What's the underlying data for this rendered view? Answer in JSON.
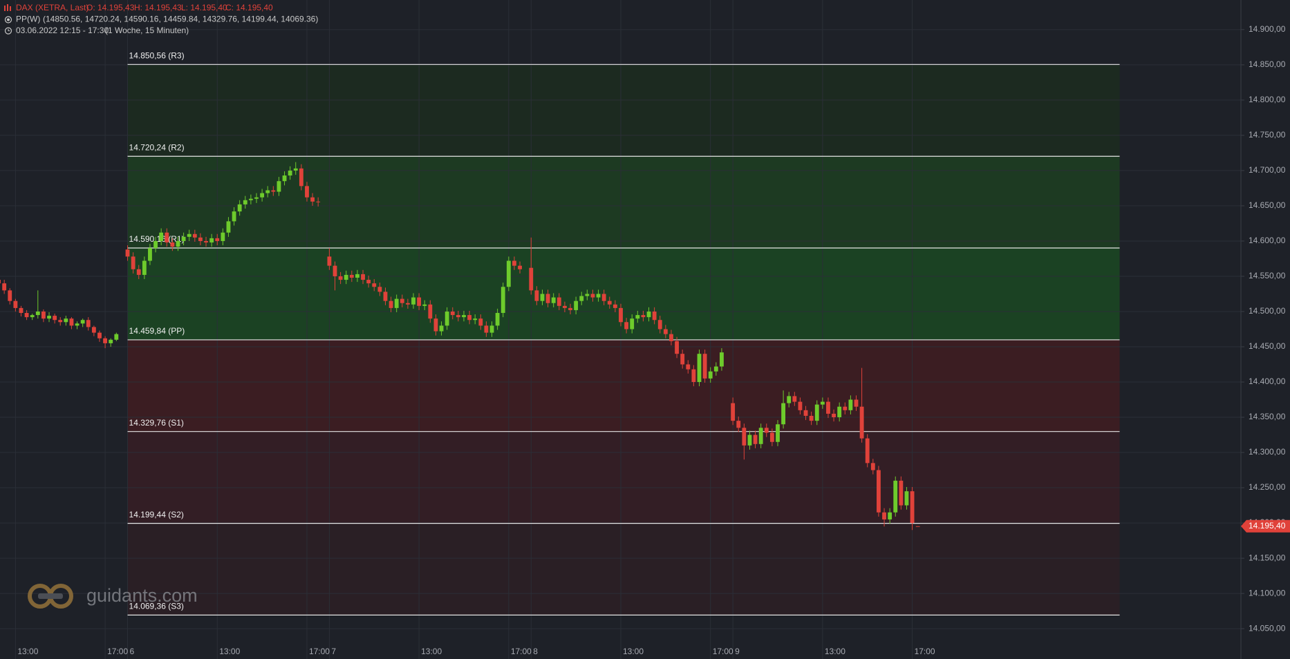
{
  "header": {
    "symbol": "DAX (XETRA, Last)",
    "open": "O: 14.195,43",
    "high": "H: 14.195,43",
    "low": "L: 14.195,40",
    "close": "C: 14.195,40",
    "indicator": "PP(W)",
    "indicator_values": "(14850.56, 14720.24, 14590.16, 14459.84, 14329.76, 14199.44, 14069.36)",
    "range": "03.06.2022 12:15 - 17:30",
    "interval": "(1 Woche, 15 Minuten)"
  },
  "watermark": "guidants.com",
  "chart_data": {
    "type": "candlestick",
    "up_color": "#6ecb2c",
    "down_color": "#e0423a",
    "xlim": [
      -5.69,
      49.66
    ],
    "ylim": [
      14007,
      14942
    ],
    "grid": true,
    "xticks": [
      {
        "value": -5,
        "label": "13:00"
      },
      {
        "value": -1,
        "label": "17:00"
      },
      {
        "value": 0,
        "label": "6"
      },
      {
        "value": 4,
        "label": "13:00"
      },
      {
        "value": 8,
        "label": "17:00"
      },
      {
        "value": 9,
        "label": "7"
      },
      {
        "value": 13,
        "label": "13:00"
      },
      {
        "value": 17,
        "label": "17:00"
      },
      {
        "value": 18,
        "label": "8"
      },
      {
        "value": 22,
        "label": "13:00"
      },
      {
        "value": 26,
        "label": "17:00"
      },
      {
        "value": 27,
        "label": "9"
      },
      {
        "value": 31,
        "label": "13:00"
      },
      {
        "value": 35,
        "label": "17:00"
      }
    ],
    "yticks": [
      {
        "value": 14050,
        "label": "14.050,00"
      },
      {
        "value": 14100,
        "label": "14.100,00"
      },
      {
        "value": 14150,
        "label": "14.150,00"
      },
      {
        "value": 14200,
        "label": "14.200,00"
      },
      {
        "value": 14250,
        "label": "14.250,00"
      },
      {
        "value": 14300,
        "label": "14.300,00"
      },
      {
        "value": 14350,
        "label": "14.350,00"
      },
      {
        "value": 14400,
        "label": "14.400,00"
      },
      {
        "value": 14450,
        "label": "14.450,00"
      },
      {
        "value": 14500,
        "label": "14.500,00"
      },
      {
        "value": 14550,
        "label": "14.550,00"
      },
      {
        "value": 14600,
        "label": "14.600,00"
      },
      {
        "value": 14650,
        "label": "14.650,00"
      },
      {
        "value": 14700,
        "label": "14.700,00"
      },
      {
        "value": 14750,
        "label": "14.750,00"
      },
      {
        "value": 14800,
        "label": "14.800,00"
      },
      {
        "value": 14850,
        "label": "14.850,00"
      },
      {
        "value": 14900,
        "label": "14.900,00"
      }
    ],
    "last_price": {
      "value": 14195.4,
      "label": "14.195,40"
    },
    "level_range": [
      0,
      44.25
    ],
    "levels": [
      {
        "value": 14850.56,
        "label": "14.850,56 (R3)"
      },
      {
        "value": 14720.24,
        "label": "14.720,24 (R2)"
      },
      {
        "value": 14590.16,
        "label": "14.590,16 (R1)"
      },
      {
        "value": 14459.84,
        "label": "14.459,84 (PP)"
      },
      {
        "value": 14329.76,
        "label": "14.329,76 (S1)"
      },
      {
        "value": 14199.44,
        "label": "14.199,44 (S2)"
      },
      {
        "value": 14069.36,
        "label": "14.069,36 (S3)"
      }
    ],
    "zone_colors": [
      "#1c2a20",
      "#1d3a22",
      "#1b4223",
      "#3b1d22",
      "#331e25",
      "#2a1f25"
    ],
    "x": [
      -5.75,
      -5.5,
      -5.25,
      -5,
      -4.75,
      -4.5,
      -4.25,
      -4,
      -3.75,
      -3.5,
      -3.25,
      -3,
      -2.75,
      -2.5,
      -2.25,
      -2,
      -1.75,
      -1.5,
      -1.25,
      -1,
      -0.75,
      -0.5,
      0,
      0.25,
      0.5,
      0.75,
      1,
      1.25,
      1.5,
      1.75,
      2,
      2.25,
      2.5,
      2.75,
      3,
      3.25,
      3.5,
      3.75,
      4,
      4.25,
      4.5,
      4.75,
      5,
      5.25,
      5.5,
      5.75,
      6,
      6.25,
      6.5,
      6.75,
      7,
      7.25,
      7.5,
      7.75,
      8,
      8.25,
      8.5,
      9,
      9.25,
      9.5,
      9.75,
      10,
      10.25,
      10.5,
      10.75,
      11,
      11.25,
      11.5,
      11.75,
      12,
      12.25,
      12.5,
      12.75,
      13,
      13.25,
      13.5,
      13.75,
      14,
      14.25,
      14.5,
      14.75,
      15,
      15.25,
      15.5,
      15.75,
      16,
      16.25,
      16.5,
      16.75,
      17,
      17.25,
      17.5,
      18,
      18.25,
      18.5,
      18.75,
      19,
      19.25,
      19.5,
      19.75,
      20,
      20.25,
      20.5,
      20.75,
      21,
      21.25,
      21.5,
      21.75,
      22,
      22.25,
      22.5,
      22.75,
      23,
      23.25,
      23.5,
      23.75,
      24,
      24.25,
      24.5,
      24.75,
      25,
      25.25,
      25.5,
      25.75,
      26,
      26.25,
      26.5,
      27,
      27.25,
      27.5,
      27.75,
      28,
      28.25,
      28.5,
      28.75,
      29,
      29.25,
      29.5,
      29.75,
      30,
      30.25,
      30.5,
      30.75,
      31,
      31.25,
      31.5,
      31.75,
      32,
      32.25,
      32.5,
      32.75,
      33,
      33.25,
      33.5,
      33.75,
      34,
      34.25,
      34.5,
      34.75,
      35,
      35.25
    ],
    "open": [
      14545,
      14540,
      14530,
      14515,
      14505,
      14498,
      14492,
      14495,
      14500,
      14490,
      14494,
      14488,
      14485,
      14490,
      14480,
      14483,
      14488,
      14478,
      14470,
      14462,
      14455,
      14460,
      14588,
      14578,
      14560,
      14552,
      14572,
      14590,
      14600,
      14612,
      14598,
      14592,
      14600,
      14606,
      14610,
      14605,
      14600,
      14598,
      14604,
      14600,
      14612,
      14628,
      14642,
      14652,
      14658,
      14660,
      14662,
      14668,
      14672,
      14670,
      14685,
      14693,
      14700,
      14703,
      14678,
      14662,
      14656,
      14578,
      14565,
      14550,
      14545,
      14552,
      14548,
      14553,
      14545,
      14540,
      14535,
      14528,
      14515,
      14505,
      14518,
      14512,
      14510,
      14520,
      14508,
      14510,
      14490,
      14472,
      14480,
      14500,
      14495,
      14492,
      14495,
      14488,
      14490,
      14480,
      14470,
      14480,
      14498,
      14535,
      14572,
      14565,
      14562,
      14530,
      14515,
      14525,
      14512,
      14520,
      14508,
      14505,
      14502,
      14515,
      14522,
      14525,
      14520,
      14525,
      14515,
      14510,
      14505,
      14485,
      14475,
      14490,
      14495,
      14492,
      14500,
      14488,
      14475,
      14468,
      14458,
      14440,
      14425,
      14418,
      14400,
      14440,
      14405,
      14415,
      14422,
      14370,
      14345,
      14335,
      14310,
      14325,
      14312,
      14335,
      14328,
      14315,
      14340,
      14370,
      14380,
      14372,
      14360,
      14352,
      14345,
      14368,
      14372,
      14355,
      14350,
      14365,
      14360,
      14375,
      14365,
      14320,
      14285,
      14275,
      14215,
      14205,
      14215,
      14260,
      14225,
      14245,
      14195.43
    ],
    "high": [
      14552,
      14545,
      14533,
      14518,
      14508,
      14502,
      14497,
      14530,
      14503,
      14499,
      14497,
      14492,
      14494,
      14492,
      14486,
      14490,
      14492,
      14480,
      14473,
      14465,
      14462,
      14470,
      14594,
      14584,
      14566,
      14578,
      14596,
      14606,
      14618,
      14618,
      14604,
      14606,
      14612,
      14616,
      14616,
      14611,
      14606,
      14610,
      14610,
      14618,
      14634,
      14648,
      14658,
      14664,
      14666,
      14668,
      14674,
      14678,
      14678,
      14691,
      14699,
      14706,
      14712,
      14709,
      14684,
      14668,
      14662,
      14590,
      14571,
      14556,
      14558,
      14558,
      14559,
      14559,
      14551,
      14546,
      14541,
      14534,
      14521,
      14524,
      14524,
      14518,
      14526,
      14526,
      14516,
      14516,
      14496,
      14486,
      14506,
      14506,
      14501,
      14501,
      14501,
      14496,
      14496,
      14486,
      14486,
      14504,
      14541,
      14578,
      14578,
      14571,
      14605,
      14536,
      14531,
      14531,
      14526,
      14526,
      14514,
      14511,
      14521,
      14528,
      14531,
      14531,
      14531,
      14531,
      14521,
      14516,
      14511,
      14491,
      14496,
      14501,
      14501,
      14506,
      14506,
      14494,
      14481,
      14474,
      14464,
      14446,
      14431,
      14424,
      14446,
      14446,
      14421,
      14428,
      14448,
      14378,
      14351,
      14341,
      14331,
      14331,
      14341,
      14341,
      14334,
      14346,
      14388,
      14386,
      14386,
      14378,
      14366,
      14358,
      14374,
      14378,
      14378,
      14361,
      14371,
      14371,
      14381,
      14381,
      14420,
      14326,
      14291,
      14281,
      14221,
      14221,
      14266,
      14266,
      14251,
      14251,
      14195.43
    ],
    "low": [
      14535,
      14525,
      14510,
      14500,
      14493,
      14488,
      14488,
      14490,
      14485,
      14485,
      14483,
      14480,
      14480,
      14475,
      14475,
      14478,
      14473,
      14465,
      14457,
      14448,
      14450,
      14458,
      14572,
      14554,
      14546,
      14546,
      14566,
      14584,
      14594,
      14592,
      14586,
      14586,
      14594,
      14600,
      14599,
      14594,
      14592,
      14592,
      14594,
      14594,
      14606,
      14622,
      14636,
      14646,
      14652,
      14654,
      14656,
      14662,
      14664,
      14664,
      14679,
      14687,
      14694,
      14672,
      14656,
      14650,
      14649,
      14559,
      14530,
      14539,
      14539,
      14542,
      14542,
      14539,
      14534,
      14529,
      14522,
      14509,
      14499,
      14499,
      14506,
      14504,
      14504,
      14502,
      14502,
      14484,
      14466,
      14466,
      14474,
      14489,
      14486,
      14486,
      14482,
      14482,
      14474,
      14464,
      14464,
      14474,
      14492,
      14529,
      14559,
      14554,
      14524,
      14509,
      14509,
      14506,
      14506,
      14502,
      14499,
      14496,
      14496,
      14509,
      14516,
      14514,
      14514,
      14509,
      14504,
      14499,
      14479,
      14469,
      14469,
      14484,
      14486,
      14486,
      14482,
      14469,
      14462,
      14452,
      14434,
      14419,
      14412,
      14394,
      14394,
      14399,
      14399,
      14409,
      14416,
      14339,
      14329,
      14290,
      14304,
      14306,
      14306,
      14322,
      14309,
      14309,
      14334,
      14364,
      14366,
      14354,
      14346,
      14339,
      14339,
      14362,
      14349,
      14344,
      14344,
      14354,
      14354,
      14359,
      14314,
      14279,
      14269,
      14209,
      14195,
      14199,
      14209,
      14219,
      14219,
      14190,
      14195.4
    ],
    "close": [
      14540,
      14530,
      14515,
      14505,
      14498,
      14492,
      14495,
      14500,
      14490,
      14494,
      14488,
      14485,
      14490,
      14480,
      14483,
      14488,
      14478,
      14470,
      14462,
      14455,
      14460,
      14468,
      14578,
      14560,
      14552,
      14572,
      14590,
      14600,
      14612,
      14598,
      14592,
      14600,
      14606,
      14610,
      14605,
      14600,
      14598,
      14604,
      14600,
      14612,
      14628,
      14642,
      14652,
      14658,
      14660,
      14662,
      14668,
      14672,
      14670,
      14685,
      14693,
      14700,
      14703,
      14678,
      14662,
      14656,
      14655,
      14565,
      14550,
      14545,
      14552,
      14548,
      14553,
      14545,
      14540,
      14535,
      14528,
      14515,
      14505,
      14518,
      14512,
      14510,
      14520,
      14508,
      14510,
      14490,
      14472,
      14480,
      14500,
      14495,
      14492,
      14495,
      14488,
      14490,
      14480,
      14470,
      14480,
      14498,
      14535,
      14572,
      14565,
      14560,
      14530,
      14515,
      14525,
      14512,
      14520,
      14508,
      14505,
      14502,
      14515,
      14522,
      14525,
      14520,
      14525,
      14515,
      14510,
      14505,
      14485,
      14475,
      14490,
      14495,
      14492,
      14500,
      14488,
      14475,
      14468,
      14458,
      14440,
      14425,
      14418,
      14400,
      14440,
      14405,
      14415,
      14422,
      14442,
      14345,
      14335,
      14310,
      14325,
      14312,
      14335,
      14328,
      14315,
      14340,
      14370,
      14380,
      14372,
      14360,
      14352,
      14345,
      14368,
      14372,
      14355,
      14350,
      14365,
      14360,
      14375,
      14365,
      14320,
      14285,
      14275,
      14215,
      14205,
      14215,
      14260,
      14225,
      14245,
      14200,
      14195.4
    ]
  }
}
